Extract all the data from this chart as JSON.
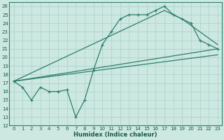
{
  "xlabel": "Humidex (Indice chaleur)",
  "bg_color": "#cce8e0",
  "line_color": "#2e7d6e",
  "grid_color": "#aed4cc",
  "xlim": [
    -0.5,
    23.5
  ],
  "ylim": [
    12,
    26.5
  ],
  "yticks": [
    12,
    13,
    14,
    15,
    16,
    17,
    18,
    19,
    20,
    21,
    22,
    23,
    24,
    25,
    26
  ],
  "xticks": [
    0,
    1,
    2,
    3,
    4,
    5,
    6,
    7,
    8,
    9,
    10,
    11,
    12,
    13,
    14,
    15,
    16,
    17,
    18,
    19,
    20,
    21,
    22,
    23
  ],
  "line1_x": [
    0,
    1,
    2,
    3,
    4,
    5,
    6,
    7,
    8,
    9,
    10,
    11,
    12,
    13,
    14,
    15,
    16,
    17,
    18,
    19,
    20,
    21,
    22,
    23
  ],
  "line1_y": [
    17.2,
    16.5,
    15.0,
    16.5,
    16.0,
    16.0,
    16.2,
    13.0,
    15.0,
    18.5,
    21.5,
    23.0,
    24.5,
    25.0,
    25.0,
    25.0,
    25.5,
    26.0,
    25.0,
    24.5,
    24.0,
    22.0,
    21.5,
    21.0
  ],
  "line2_x": [
    0,
    17,
    19,
    23
  ],
  "line2_y": [
    17.2,
    25.5,
    24.5,
    21.5
  ],
  "line3_x": [
    0,
    23
  ],
  "line3_y": [
    17.2,
    21.0
  ],
  "line4_x": [
    0,
    23
  ],
  "line4_y": [
    17.2,
    20.3
  ]
}
